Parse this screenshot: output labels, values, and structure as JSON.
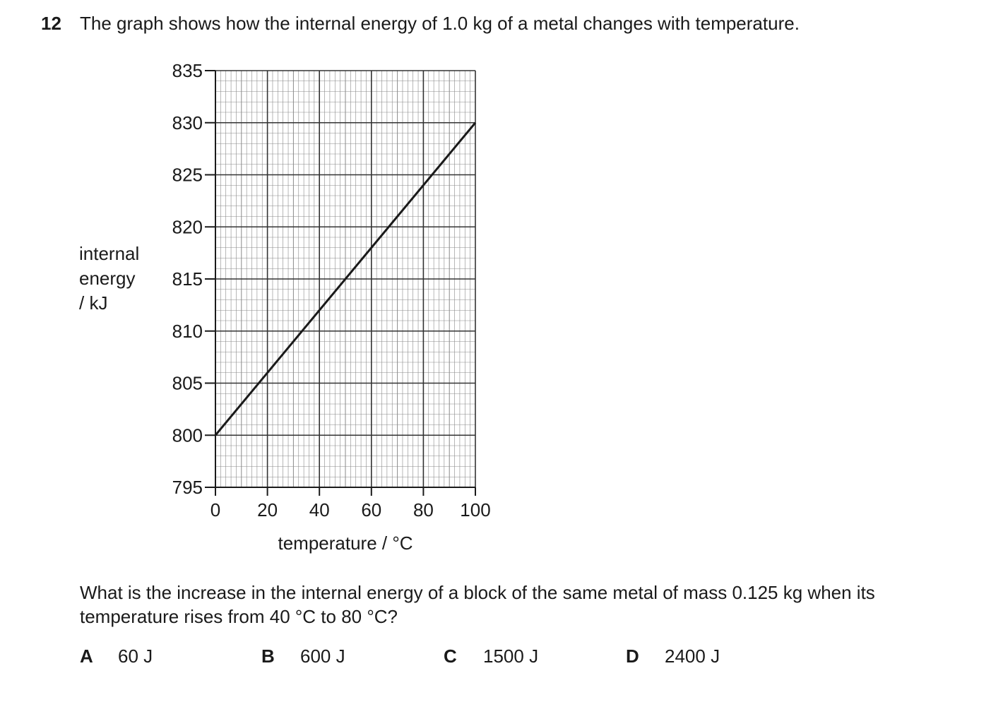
{
  "question": {
    "number": "12",
    "stem": "The graph shows how the internal energy of 1.0 kg of a metal changes with temperature.",
    "prompt": "What is the increase in the internal energy of a block of the same metal of mass 0.125 kg when its temperature rises from 40 °C to 80 °C?",
    "options": [
      {
        "letter": "A",
        "value": "60 J"
      },
      {
        "letter": "B",
        "value": "600 J"
      },
      {
        "letter": "C",
        "value": "1500 J"
      },
      {
        "letter": "D",
        "value": "2400 J"
      }
    ]
  },
  "chart_data": {
    "type": "line",
    "title": "",
    "xlabel": "temperature / °C",
    "ylabel_lines": [
      "internal",
      "energy",
      "/ kJ"
    ],
    "xlim": [
      0,
      100
    ],
    "ylim": [
      795,
      835
    ],
    "xticks": [
      "0",
      "20",
      "40",
      "60",
      "80",
      "100"
    ],
    "yticks": [
      "795",
      "800",
      "805",
      "810",
      "815",
      "820",
      "825",
      "830",
      "835"
    ],
    "grid": true,
    "series": [
      {
        "x": [
          0,
          100
        ],
        "y": [
          800,
          830
        ]
      }
    ],
    "colors": {
      "line": "#1a1a1a",
      "grid_major": "#333333",
      "grid_minor": "#8a8a8a"
    }
  }
}
